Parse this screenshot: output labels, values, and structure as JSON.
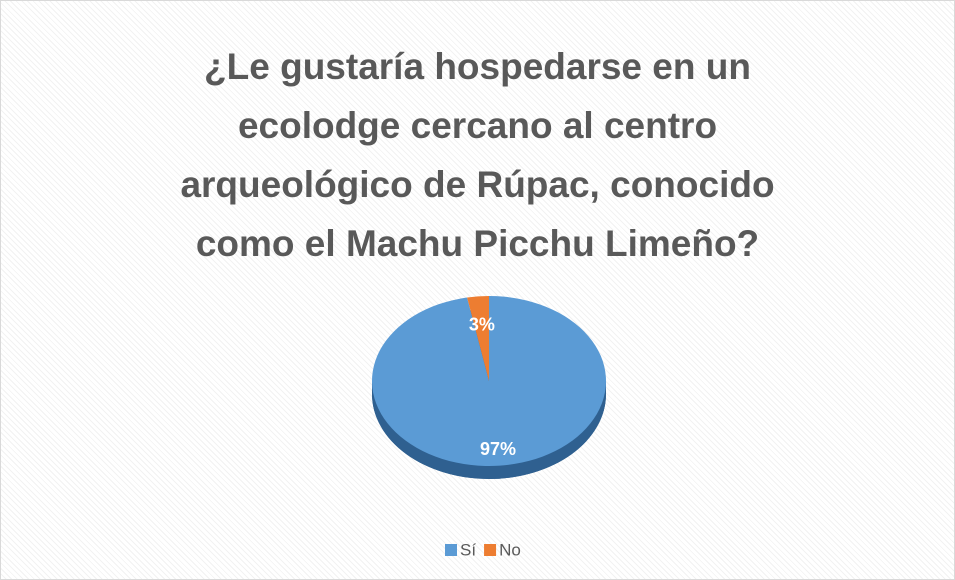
{
  "chart_data": {
    "type": "pie",
    "title": "¿Le gustaría hospedarse en un ecolodge cercano al centro arqueológico de Rúpac, conocido como el Machu Picchu Limeño?",
    "categories": [
      "Sí",
      "No"
    ],
    "values": [
      97,
      3
    ],
    "value_labels": [
      "97%",
      "3%"
    ],
    "colors": [
      "#5b9bd5",
      "#ed7d31"
    ],
    "legend": "bottom"
  }
}
